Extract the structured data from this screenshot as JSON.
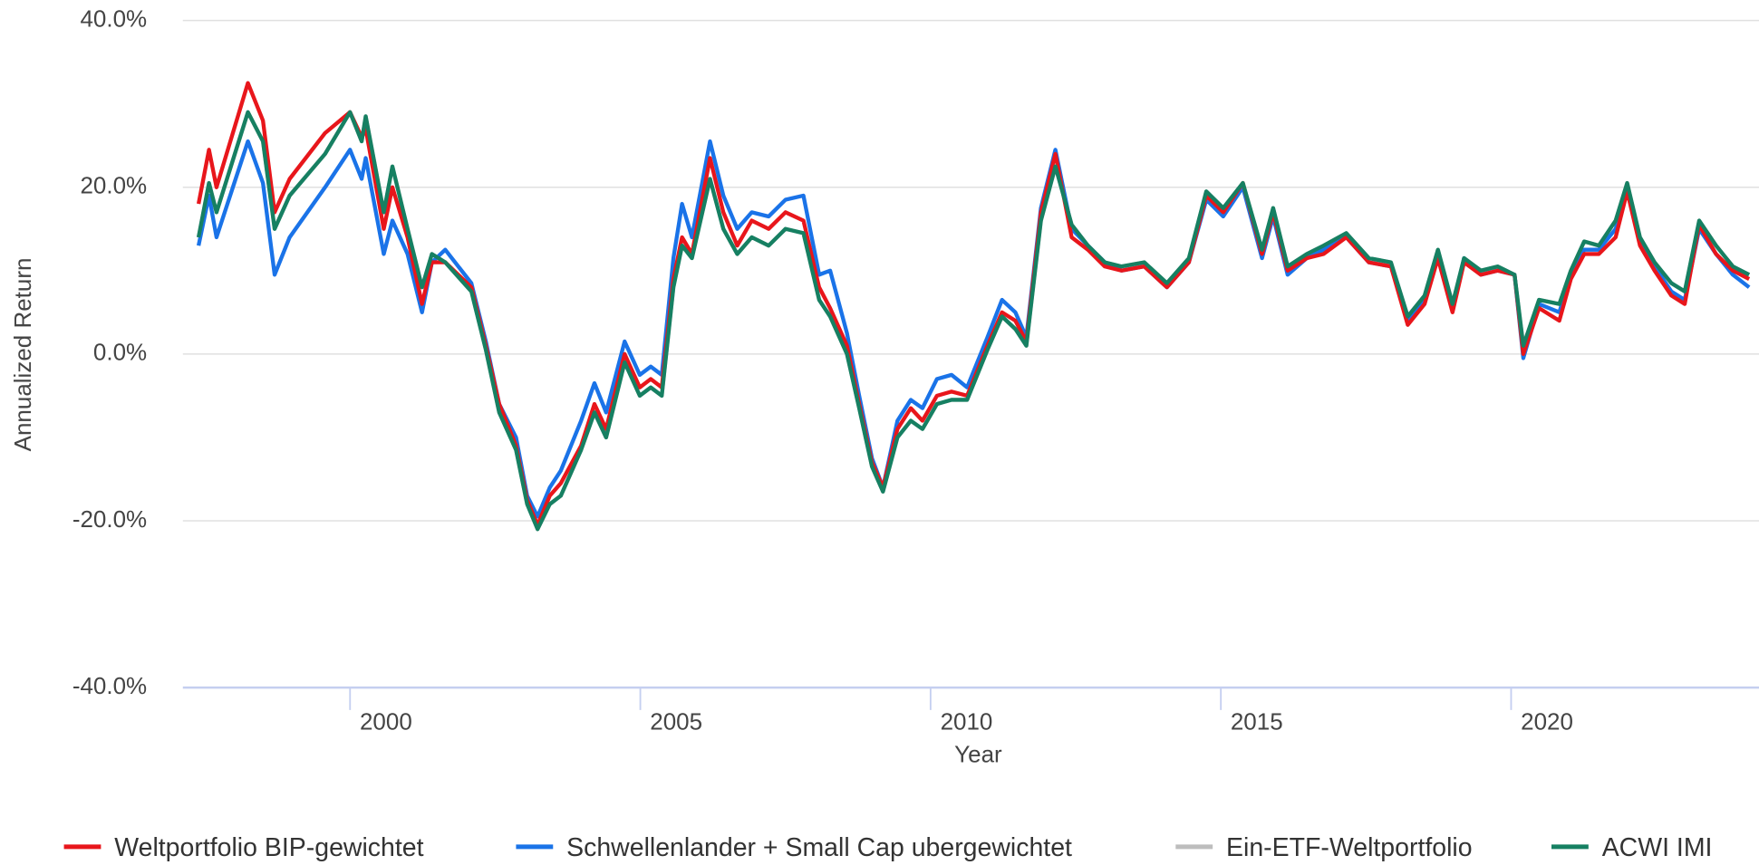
{
  "chart_data": {
    "type": "line",
    "x_label": "Year",
    "y_label": "Annualized Return",
    "x": [
      1997.39,
      1997.57,
      1997.7,
      1998.24,
      1998.5,
      1998.7,
      1998.96,
      1999.57,
      2000.0,
      2000.2,
      2000.27,
      2000.58,
      2000.73,
      2000.99,
      2001.24,
      2001.41,
      2001.64,
      2002.09,
      2002.34,
      2002.57,
      2002.86,
      2003.05,
      2003.23,
      2003.44,
      2003.63,
      2003.98,
      2004.21,
      2004.41,
      2004.73,
      2004.99,
      2005.18,
      2005.37,
      2005.57,
      2005.72,
      2005.89,
      2006.2,
      2006.43,
      2006.67,
      2006.92,
      2007.21,
      2007.5,
      2007.81,
      2008.08,
      2008.27,
      2008.56,
      2008.77,
      2008.99,
      2009.18,
      2009.43,
      2009.66,
      2009.86,
      2010.11,
      2010.36,
      2010.63,
      2010.98,
      2011.23,
      2011.46,
      2011.65,
      2011.9,
      2012.15,
      2012.43,
      2012.71,
      2013.0,
      2013.29,
      2013.68,
      2014.07,
      2014.45,
      2014.75,
      2015.04,
      2015.38,
      2015.71,
      2015.9,
      2016.15,
      2016.48,
      2016.77,
      2017.16,
      2017.55,
      2017.93,
      2018.22,
      2018.51,
      2018.74,
      2018.99,
      2019.19,
      2019.48,
      2019.77,
      2020.06,
      2020.21,
      2020.48,
      2020.83,
      2021.03,
      2021.26,
      2021.51,
      2021.8,
      2022.0,
      2022.22,
      2022.47,
      2022.76,
      2022.99,
      2023.24,
      2023.53,
      2023.82,
      2024.1
    ],
    "series": [
      {
        "name": "Weltportfolio BIP-gewichtet",
        "color": "#e8161b",
        "values": [
          18,
          24.5,
          20,
          32.5,
          28,
          17,
          21,
          26.5,
          29,
          26,
          27,
          15,
          20,
          14,
          6,
          11,
          11,
          8,
          1,
          -6,
          -11,
          -17.5,
          -20.5,
          -17,
          -15.5,
          -11,
          -6,
          -9,
          0,
          -4,
          -3,
          -4,
          9,
          14,
          12,
          23.5,
          17,
          13,
          16,
          15,
          17,
          16,
          8,
          5.5,
          1,
          -6,
          -13,
          -16,
          -9,
          -6.5,
          -8,
          -5,
          -4.5,
          -5,
          1,
          5,
          4,
          1.5,
          17,
          24,
          14,
          12.5,
          10.5,
          10,
          10.5,
          8,
          11,
          19,
          17,
          20.5,
          12,
          17,
          10,
          11.5,
          12,
          14,
          11,
          10.5,
          3.5,
          6,
          11.5,
          5,
          11,
          9.5,
          10,
          9.5,
          0,
          5.5,
          4,
          9,
          12,
          12,
          14,
          19.5,
          13,
          10,
          7,
          6,
          15.5,
          12,
          10,
          9
        ]
      },
      {
        "name": "Schwellenlander + Small Cap ubergewichtet",
        "color": "#1a73e8",
        "values": [
          13,
          19,
          14,
          25.5,
          20.5,
          9.5,
          14,
          20,
          24.5,
          21,
          23.5,
          12,
          16,
          12,
          5,
          11,
          12.5,
          8.5,
          1.5,
          -6,
          -10,
          -17,
          -19.5,
          -16,
          -14,
          -8,
          -3.5,
          -7,
          1.5,
          -2.5,
          -1.5,
          -2.5,
          11.5,
          18,
          14,
          25.5,
          19,
          15,
          17,
          16.5,
          18.5,
          19,
          9.5,
          10,
          2.5,
          -5,
          -12.5,
          -16,
          -8,
          -5.5,
          -6.5,
          -3,
          -2.5,
          -4,
          2,
          6.5,
          5,
          2,
          17.5,
          24.5,
          15,
          13,
          11,
          10,
          10.5,
          8,
          11,
          18.5,
          16.5,
          20,
          11.5,
          16.5,
          9.5,
          11.5,
          12.5,
          14,
          11,
          10.5,
          4,
          6.5,
          12,
          5.5,
          11.5,
          9.5,
          10,
          9.5,
          -0.5,
          6,
          5,
          9.5,
          12.5,
          12.5,
          15,
          19.5,
          13.5,
          10.5,
          7.5,
          6.5,
          15,
          12,
          9.5,
          8
        ]
      },
      {
        "name": "Ein-ETF-Weltportfolio",
        "color": "#bdbdbd",
        "values": [
          14,
          20.5,
          17,
          29,
          25.5,
          15,
          19,
          24,
          29,
          25.5,
          28.5,
          17,
          22.5,
          15,
          8,
          12,
          11,
          7.5,
          0.5,
          -7,
          -11.5,
          -18,
          -21,
          -18,
          -17,
          -11.5,
          -7,
          -10,
          -1,
          -5,
          -4,
          -5,
          8,
          13,
          11.5,
          21,
          15,
          12,
          14,
          13,
          15,
          14.5,
          6.5,
          4.5,
          0,
          -6.5,
          -13.5,
          -16.5,
          -10,
          -8,
          -9,
          -6,
          -5.5,
          -5.5,
          0.5,
          4.5,
          3,
          1,
          16,
          22.5,
          15.5,
          13,
          11,
          10.5,
          11,
          8.5,
          11.5,
          19.5,
          17.5,
          20.5,
          12.5,
          17.5,
          10.5,
          12,
          13,
          14.5,
          11.5,
          11,
          4.5,
          7,
          12.5,
          6,
          11.5,
          10,
          10.5,
          9.5,
          1,
          6.5,
          6,
          10,
          13.5,
          13,
          16,
          20.5,
          14,
          11,
          8.5,
          7.5,
          16,
          13,
          10.5,
          9.5
        ]
      },
      {
        "name": "ACWI IMI",
        "color": "#168062",
        "values": [
          14,
          20.5,
          17,
          29,
          25.5,
          15,
          19,
          24,
          29,
          25.5,
          28.5,
          17,
          22.5,
          15,
          8,
          12,
          11,
          7.5,
          0.5,
          -7,
          -11.5,
          -18,
          -21,
          -18,
          -17,
          -11.5,
          -7,
          -10,
          -1,
          -5,
          -4,
          -5,
          8,
          13,
          11.5,
          21,
          15,
          12,
          14,
          13,
          15,
          14.5,
          6.5,
          4.5,
          0,
          -6.5,
          -13.5,
          -16.5,
          -10,
          -8,
          -9,
          -6,
          -5.5,
          -5.5,
          0.5,
          4.5,
          3,
          1,
          16,
          22.5,
          15.5,
          13,
          11,
          10.5,
          11,
          8.5,
          11.5,
          19.5,
          17.5,
          20.5,
          12.5,
          17.5,
          10.5,
          12,
          13,
          14.5,
          11.5,
          11,
          4.5,
          7,
          12.5,
          6,
          11.5,
          10,
          10.5,
          9.5,
          1,
          6.5,
          6,
          10,
          13.5,
          13,
          16,
          20.5,
          14,
          11,
          8.5,
          7.5,
          16,
          13,
          10.5,
          9.5
        ]
      }
    ],
    "xlim": [
      1997.12,
      2024.27
    ],
    "xticks": [
      2000,
      2005,
      2010,
      2015,
      2020
    ],
    "ylim": [
      -40,
      40
    ],
    "yticks": [
      {
        "value": -40,
        "label": "-40.0%"
      },
      {
        "value": -20,
        "label": "-20.0%"
      },
      {
        "value": 0,
        "label": "0.0%"
      },
      {
        "value": 20,
        "label": "20.0%"
      },
      {
        "value": 40,
        "label": "40.0%"
      }
    ],
    "grid": true,
    "legend": "bottom"
  }
}
